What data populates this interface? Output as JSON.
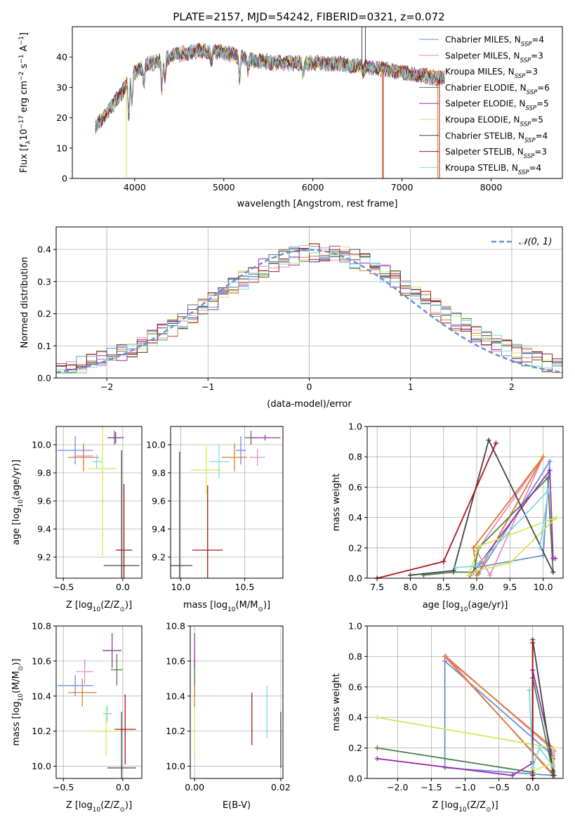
{
  "figure": {
    "title": "PLATE=2157, MJD=54242, FIBERID=0321, z=0.072"
  },
  "palette": {
    "Chabrier MILES": "#6a8fd8",
    "Salpeter MILES": "#e88ac2",
    "Kroupa MILES": "#e07a2c",
    "Chabrier ELODIE": "#4d7f4d",
    "Salpeter ELODIE": "#9b2fae",
    "Kroupa ELODIE": "#d2e85a",
    "Chabrier STELIB": "#444444",
    "Salpeter STELIB": "#b01515",
    "Kroupa STELIB": "#7fd8e0"
  },
  "chart_data": [
    {
      "id": "spectrum",
      "type": "line",
      "title": "PLATE=2157, MJD=54242, FIBERID=0321, z=0.072",
      "xlabel": "wavelength [Angstrom, rest frame]",
      "ylabel": "Flux [f_λ10^-17 erg cm^-2 s^-1 A^-1]",
      "xlim": [
        3300,
        8800
      ],
      "ylim": [
        0,
        50
      ],
      "xticks": [
        4000,
        5000,
        6000,
        7000,
        8000
      ],
      "yticks": [
        0,
        10,
        20,
        30,
        40
      ],
      "grid": false,
      "legend_position": "top-right",
      "legend": [
        "Chabrier MILES, N_SSP=4",
        "Salpeter MILES, N_SSP=3",
        "Kroupa MILES, N_SSP=3",
        "Chabrier ELODIE, N_SSP=6",
        "Salpeter ELODIE, N_SSP=5",
        "Kroupa ELODIE, N_SSP=5",
        "Chabrier STELIB, N_SSP=4",
        "Salpeter STELIB, N_SSP=3",
        "Kroupa STELIB, N_SSP=4"
      ],
      "series_order": [
        "Chabrier MILES",
        "Salpeter MILES",
        "Kroupa MILES",
        "Chabrier ELODIE",
        "Salpeter ELODIE",
        "Kroupa ELODIE",
        "Chabrier STELIB",
        "Salpeter STELIB",
        "Kroupa STELIB"
      ],
      "continuum": {
        "x": [
          3560,
          3700,
          3850,
          3950,
          4100,
          4300,
          4500,
          4700,
          4900,
          5100,
          5300,
          5600,
          5900,
          6200,
          6500,
          6800,
          7000,
          7200,
          7400,
          7500
        ],
        "y": [
          17,
          22,
          28,
          34,
          37,
          39,
          41,
          42,
          42,
          41,
          39,
          38,
          38,
          38,
          37,
          36,
          35,
          34,
          33,
          33
        ]
      },
      "absorption_features": [
        {
          "x": 3934,
          "depth": 12
        },
        {
          "x": 3969,
          "depth": 10
        },
        {
          "x": 4102,
          "depth": 6
        },
        {
          "x": 4305,
          "depth": 9
        },
        {
          "x": 4340,
          "depth": 6
        },
        {
          "x": 4861,
          "depth": 4
        },
        {
          "x": 5175,
          "depth": 7
        },
        {
          "x": 5270,
          "depth": 3
        },
        {
          "x": 5890,
          "depth": 4
        },
        {
          "x": 6563,
          "depth": 2
        }
      ],
      "spikes": [
        {
          "series": "Kroupa ELODIE",
          "x": 3905,
          "y": 0
        },
        {
          "series": "Chabrier STELIB",
          "x": 6550,
          "y": 50
        },
        {
          "series": "Chabrier STELIB",
          "x": 6590,
          "y": 50
        },
        {
          "series": "Kroupa MILES",
          "x": 6780,
          "y": 0
        },
        {
          "series": "Salpeter STELIB",
          "x": 6790,
          "y": 0
        },
        {
          "series": "Kroupa MILES",
          "x": 7400,
          "y": 0
        },
        {
          "series": "Salpeter STELIB",
          "x": 7420,
          "y": 0
        }
      ]
    },
    {
      "id": "residuals",
      "type": "step",
      "xlabel": "(data-model)/error",
      "ylabel": "Normed distribution",
      "xlim": [
        -2.5,
        2.5
      ],
      "ylim": [
        0,
        0.47
      ],
      "xticks": [
        -2,
        -1,
        0,
        1,
        2
      ],
      "yticks": [
        0.0,
        0.1,
        0.2,
        0.3,
        0.4
      ],
      "grid": true,
      "legend_position": "top-right",
      "legend": [
        "𝒩(0, 1)"
      ],
      "gaussian": {
        "mean": 0,
        "sigma": 1,
        "color": "#6a8fd8"
      },
      "histogram": {
        "bin_start": -2.5,
        "bin_width": 0.1,
        "sigma": 1.05,
        "mean": 0.1
      }
    },
    {
      "id": "age_vs_Z",
      "type": "errorbar",
      "xlabel": "Z [log10(Z/Z⊙)]",
      "ylabel": "age [log10(age/yr)]",
      "xlim": [
        -0.56,
        0.16
      ],
      "ylim": [
        9.05,
        10.13
      ],
      "xticks": [
        -0.5,
        0.0
      ],
      "yticks": [
        9.2,
        9.4,
        9.6,
        9.8,
        10.0
      ],
      "grid": true,
      "points": [
        {
          "series": "Chabrier MILES",
          "x": -0.4,
          "y": 9.96,
          "xerr": 0.15,
          "yerr": 0.1
        },
        {
          "series": "Salpeter MILES",
          "x": -0.33,
          "y": 9.92,
          "xerr": 0.08,
          "yerr": 0.06
        },
        {
          "series": "Kroupa MILES",
          "x": -0.33,
          "y": 9.91,
          "xerr": 0.13,
          "yerr": 0.1
        },
        {
          "series": "Chabrier ELODIE",
          "x": -0.07,
          "y": 10.05,
          "xerr": 0.05,
          "yerr": 0.05
        },
        {
          "series": "Salpeter ELODIE",
          "x": -0.06,
          "y": 10.05,
          "xerr": 0.07,
          "yerr": 0.04
        },
        {
          "series": "Kroupa ELODIE",
          "x": -0.17,
          "y": 9.83,
          "xerr": 0.12,
          "yerr": 0.62
        },
        {
          "series": "Chabrier STELIB",
          "x": -0.01,
          "y": 9.14,
          "xerr": 0.15,
          "yerr": 0.82
        },
        {
          "series": "Salpeter STELIB",
          "x": 0.01,
          "y": 9.25,
          "xerr": 0.07,
          "yerr": 0.47
        },
        {
          "series": "Kroupa STELIB",
          "x": -0.22,
          "y": 9.88,
          "xerr": 0.04,
          "yerr": 0.05
        }
      ]
    },
    {
      "id": "age_vs_mass",
      "type": "errorbar",
      "xlabel": "mass [log10(M/M⊙)]",
      "ylabel": "",
      "xlim": [
        9.92,
        10.8
      ],
      "ylim": [
        9.05,
        10.13
      ],
      "xticks": [
        10.0,
        10.5
      ],
      "yticks": [
        9.2,
        9.4,
        9.6,
        9.8,
        10.0
      ],
      "grid": true,
      "points": [
        {
          "series": "Chabrier MILES",
          "x": 10.47,
          "y": 9.96,
          "xerr": 0.04,
          "yerr": 0.1
        },
        {
          "series": "Salpeter MILES",
          "x": 10.6,
          "y": 9.91,
          "xerr": 0.06,
          "yerr": 0.06
        },
        {
          "series": "Kroupa MILES",
          "x": 10.42,
          "y": 9.91,
          "xerr": 0.1,
          "yerr": 0.1
        },
        {
          "series": "Chabrier ELODIE",
          "x": 10.55,
          "y": 10.05,
          "xerr": 0.05,
          "yerr": 0.05
        },
        {
          "series": "Salpeter ELODIE",
          "x": 10.66,
          "y": 10.05,
          "xerr": 0.12,
          "yerr": 0.02
        },
        {
          "series": "Kroupa ELODIE",
          "x": 10.2,
          "y": 9.82,
          "xerr": 0.12,
          "yerr": 0.17
        },
        {
          "series": "Chabrier STELIB",
          "x": 9.99,
          "y": 9.14,
          "xerr": 0.1,
          "yerr": 0.81
        },
        {
          "series": "Salpeter STELIB",
          "x": 10.21,
          "y": 9.25,
          "xerr": 0.12,
          "yerr": 0.46
        },
        {
          "series": "Kroupa STELIB",
          "x": 10.3,
          "y": 9.88,
          "xerr": 0.08,
          "yerr": 0.12
        }
      ]
    },
    {
      "id": "mass_weight_vs_age",
      "type": "line",
      "xlabel": "age [log10(age/yr)]",
      "ylabel": "mass weight",
      "xlim": [
        7.35,
        10.3
      ],
      "ylim": [
        0,
        1.0
      ],
      "xticks": [
        7.5,
        8.0,
        8.5,
        9.0,
        9.5,
        10.0
      ],
      "yticks": [
        0.0,
        0.2,
        0.4,
        0.6,
        0.8,
        1.0
      ],
      "grid": true,
      "series": [
        {
          "name": "Chabrier MILES",
          "x": [
            8.98,
            10.0,
            10.1,
            9.03
          ],
          "y": [
            0.07,
            0.15,
            0.77,
            0.03
          ],
          "closed": true
        },
        {
          "name": "Salpeter MILES",
          "x": [
            9.0,
            10.0,
            9.2
          ],
          "y": [
            0.18,
            0.8,
            0.02
          ],
          "closed": true
        },
        {
          "name": "Kroupa MILES",
          "x": [
            8.95,
            10.0,
            9.0
          ],
          "y": [
            0.2,
            0.8,
            0.02
          ],
          "closed": true
        },
        {
          "name": "Chabrier ELODIE",
          "x": [
            8.2,
            8.65,
            8.95,
            9.03,
            10.07,
            10.15
          ],
          "y": [
            0.02,
            0.04,
            0.04,
            0.2,
            0.66,
            0.04
          ]
        },
        {
          "name": "Salpeter ELODIE",
          "x": [
            8.9,
            9.05,
            10.1,
            10.15,
            10.18
          ],
          "y": [
            0.02,
            0.1,
            0.71,
            0.13,
            0.13
          ]
        },
        {
          "name": "Kroupa ELODIE",
          "x": [
            8.88,
            9.03,
            10.2,
            9.5,
            9.0
          ],
          "y": [
            0.02,
            0.21,
            0.4,
            0.1,
            0.05
          ],
          "closed": true
        },
        {
          "name": "Chabrier STELIB",
          "x": [
            8.0,
            8.65,
            9.18,
            10.15
          ],
          "y": [
            0.02,
            0.05,
            0.91,
            0.04
          ]
        },
        {
          "name": "Salpeter STELIB",
          "x": [
            7.5,
            8.5,
            9.29
          ],
          "y": [
            0.0,
            0.11,
            0.89
          ]
        },
        {
          "name": "Kroupa STELIB",
          "x": [
            8.68,
            9.0,
            10.08,
            9.95
          ],
          "y": [
            0.07,
            0.08,
            0.58,
            0.2
          ]
        }
      ]
    },
    {
      "id": "mass_vs_Z",
      "type": "errorbar",
      "xlabel": "Z [log10(Z/Z⊙)]",
      "ylabel": "mass [log10(M/M⊙)]",
      "xlim": [
        -0.56,
        0.16
      ],
      "ylim": [
        9.93,
        10.8
      ],
      "xticks": [
        -0.5,
        0.0
      ],
      "yticks": [
        10.0,
        10.2,
        10.4,
        10.6,
        10.8
      ],
      "grid": true,
      "points": [
        {
          "series": "Chabrier MILES",
          "x": -0.4,
          "y": 10.46,
          "xerr": 0.15,
          "yerr": 0.06
        },
        {
          "series": "Salpeter MILES",
          "x": -0.32,
          "y": 10.54,
          "xerr": 0.07,
          "yerr": 0.07
        },
        {
          "series": "Kroupa MILES",
          "x": -0.34,
          "y": 10.42,
          "xerr": 0.12,
          "yerr": 0.08
        },
        {
          "series": "Chabrier ELODIE",
          "x": -0.05,
          "y": 10.55,
          "xerr": 0.05,
          "yerr": 0.09
        },
        {
          "series": "Salpeter ELODIE",
          "x": -0.09,
          "y": 10.66,
          "xerr": 0.08,
          "yerr": 0.1
        },
        {
          "series": "Kroupa ELODIE",
          "x": -0.14,
          "y": 10.2,
          "xerr": 0.12,
          "yerr": 0.14
        },
        {
          "series": "Chabrier STELIB",
          "x": -0.01,
          "y": 9.99,
          "xerr": 0.12,
          "yerr": 0.32
        },
        {
          "series": "Salpeter STELIB",
          "x": 0.02,
          "y": 10.21,
          "xerr": 0.09,
          "yerr": 0.2
        },
        {
          "series": "Kroupa STELIB",
          "x": -0.13,
          "y": 10.3,
          "xerr": 0.04,
          "yerr": 0.05
        }
      ]
    },
    {
      "id": "mass_vs_ebv",
      "type": "errorbar",
      "xlabel": "E(B-V)",
      "ylabel": "",
      "xlim": [
        -0.001,
        0.0205
      ],
      "ylim": [
        9.93,
        10.8
      ],
      "xticks": [
        0.0,
        0.02
      ],
      "yticks": [
        10.0,
        10.2,
        10.4,
        10.6,
        10.8
      ],
      "grid": true,
      "points": [
        {
          "series": "Chabrier MILES",
          "x": 0.0,
          "y": 10.46,
          "xerr": 0,
          "yerr": 0.06
        },
        {
          "series": "Salpeter MILES",
          "x": 0.0,
          "y": 10.54,
          "xerr": 0,
          "yerr": 0.07
        },
        {
          "series": "Kroupa MILES",
          "x": 0.0,
          "y": 10.42,
          "xerr": 0,
          "yerr": 0.08
        },
        {
          "series": "Chabrier ELODIE",
          "x": 0.0,
          "y": 10.55,
          "xerr": 0,
          "yerr": 0.09
        },
        {
          "series": "Salpeter ELODIE",
          "x": 0.0,
          "y": 10.66,
          "xerr": 0,
          "yerr": 0.1
        },
        {
          "series": "Kroupa ELODIE",
          "x": 0.0,
          "y": 10.2,
          "xerr": 0,
          "yerr": 0.14
        },
        {
          "series": "Chabrier STELIB",
          "x": 0.02,
          "y": 10.15,
          "xerr": 0,
          "yerr": 0.16
        },
        {
          "series": "Salpeter STELIB",
          "x": 0.0133,
          "y": 10.27,
          "xerr": 0,
          "yerr": 0.15
        },
        {
          "series": "Kroupa STELIB",
          "x": 0.0168,
          "y": 10.31,
          "xerr": 0,
          "yerr": 0.15
        }
      ]
    },
    {
      "id": "mass_weight_vs_Z",
      "type": "line",
      "xlabel": "Z [log10(Z/Z⊙)]",
      "ylabel": "mass weight",
      "xlim": [
        -2.45,
        0.45
      ],
      "ylim": [
        0,
        1.0
      ],
      "xticks": [
        -2.0,
        -1.5,
        -1.0,
        -0.5,
        0.0
      ],
      "yticks": [
        0.0,
        0.2,
        0.4,
        0.6,
        0.8,
        1.0
      ],
      "grid": true,
      "series": [
        {
          "name": "Chabrier MILES",
          "x": [
            -1.3,
            -1.3,
            0.3,
            0.3
          ],
          "y": [
            0.07,
            0.77,
            0.15,
            0.02
          ],
          "closed": true
        },
        {
          "name": "Salpeter MILES",
          "x": [
            -1.28,
            0.32,
            0.3
          ],
          "y": [
            0.8,
            0.18,
            0.02
          ],
          "closed": true
        },
        {
          "name": "Kroupa MILES",
          "x": [
            -1.3,
            0.3,
            0.32
          ],
          "y": [
            0.8,
            0.2,
            0.02
          ],
          "closed": true
        },
        {
          "name": "Chabrier ELODIE",
          "x": [
            -2.3,
            0.0,
            0.0,
            0.3,
            0.32
          ],
          "y": [
            0.2,
            0.04,
            0.66,
            0.04,
            0.02
          ]
        },
        {
          "name": "Salpeter ELODIE",
          "x": [
            -2.3,
            -0.3,
            0.0,
            0.0,
            0.3
          ],
          "y": [
            0.13,
            0.02,
            0.1,
            0.71,
            0.13
          ]
        },
        {
          "name": "Kroupa ELODIE",
          "x": [
            -2.3,
            0.3,
            0.3,
            0.0
          ],
          "y": [
            0.4,
            0.2,
            0.1,
            0.05
          ]
        },
        {
          "name": "Chabrier STELIB",
          "x": [
            0.0,
            0.0,
            0.3,
            0.3
          ],
          "y": [
            0.02,
            0.91,
            0.05,
            0.02
          ]
        },
        {
          "name": "Salpeter STELIB",
          "x": [
            0.0,
            0.0,
            0.0
          ],
          "y": [
            0.0,
            0.89,
            0.11
          ]
        },
        {
          "name": "Kroupa STELIB",
          "x": [
            -0.05,
            0.0,
            0.1,
            0.3
          ],
          "y": [
            0.58,
            0.07,
            0.2,
            0.08
          ]
        }
      ]
    }
  ]
}
